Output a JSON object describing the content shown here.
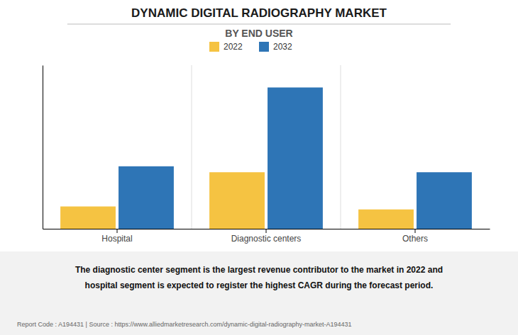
{
  "chart_data": {
    "type": "bar",
    "title": "DYNAMIC DIGITAL RADIOGRAPHY MARKET",
    "subtitle": "BY END USER",
    "categories": [
      "Hospital",
      "Diagnostic centers",
      "Others"
    ],
    "series": [
      {
        "name": "2022",
        "color": "#F5C342",
        "values": [
          15,
          38,
          13
        ]
      },
      {
        "name": "2032",
        "color": "#2E75B6",
        "values": [
          42,
          95,
          38
        ]
      }
    ],
    "ylim": [
      0,
      110
    ],
    "yticks": [],
    "grid": false,
    "legend": "top",
    "tick_labels": "x",
    "annotations": [
      "The diagnostic center segment is the largest revenue contributor to the market in 2022 and",
      "hospital segment is expected to register the highest CAGR during the forecast period.",
      "Report Code : A194431  |  Source : https://www.alliedmarketresearch.com/dynamic-digital-radiography-market-A194431"
    ]
  }
}
